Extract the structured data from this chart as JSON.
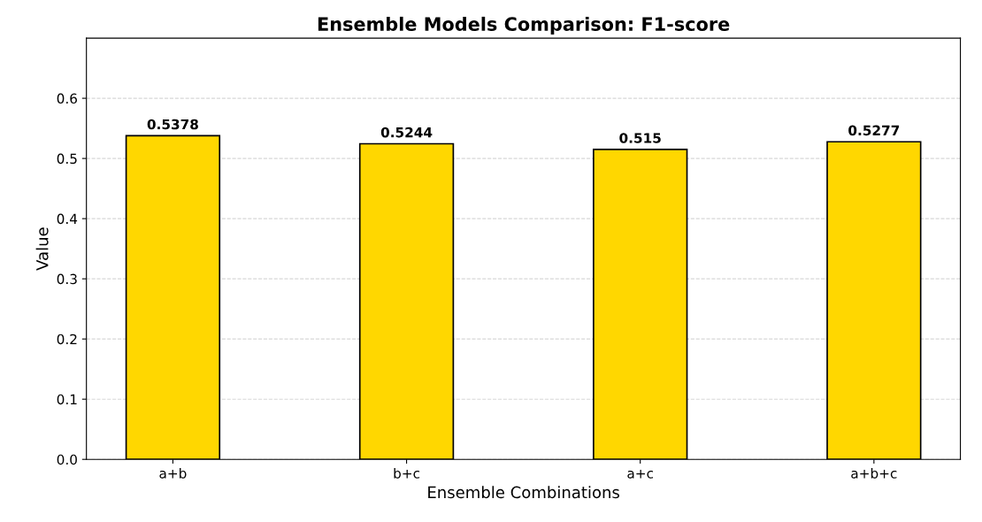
{
  "chart_data": {
    "type": "bar",
    "title": "Ensemble Models Comparison: F1-score",
    "xlabel": "Ensemble Combinations",
    "ylabel": "Value",
    "categories": [
      "a+b",
      "b+c",
      "a+c",
      "a+b+c"
    ],
    "values": [
      0.5378,
      0.5244,
      0.515,
      0.5277
    ],
    "color": "#ffd700",
    "data_labels": true,
    "ylim": [
      0,
      0.7
    ],
    "yticks": [
      {
        "value": 0,
        "label": "0.0"
      },
      0.1,
      0.2,
      0.3,
      0.4,
      0.5,
      0.6
    ],
    "grid": "y"
  }
}
